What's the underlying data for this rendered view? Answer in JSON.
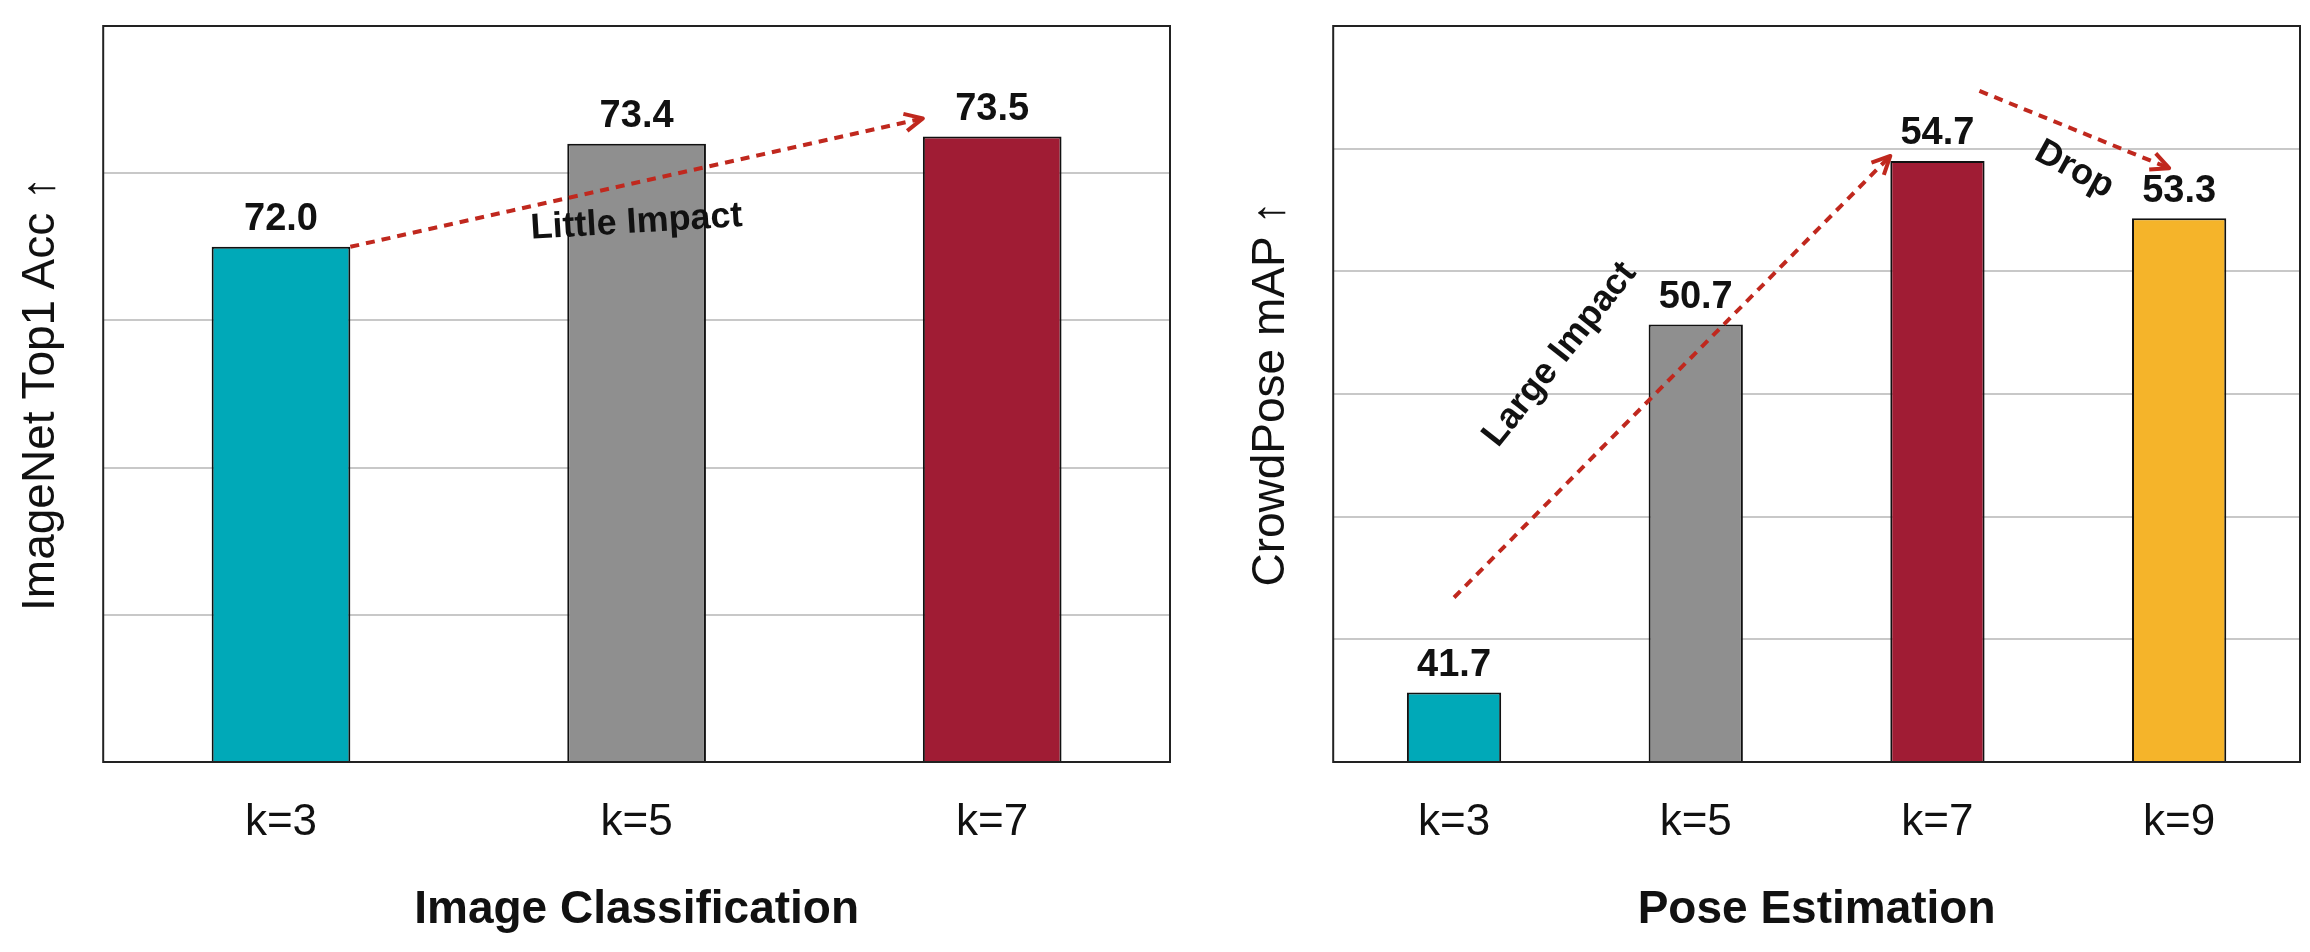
{
  "chart_data": [
    {
      "type": "bar",
      "xlabel": "Image Classification",
      "ylabel": "ImageNet Top1 Acc ↑",
      "categories": [
        "k=3",
        "k=5",
        "k=7"
      ],
      "values": [
        72.0,
        73.4,
        73.5
      ],
      "colors": [
        "#00a9b8",
        "#8f8f8f",
        "#a01c34"
      ],
      "ylim": [
        65,
        75
      ],
      "yticks": [
        {
          "value": 65,
          "label": null
        },
        {
          "value": 67,
          "label": null
        },
        {
          "value": 69,
          "label": null
        },
        {
          "value": 71,
          "label": null
        },
        {
          "value": 73,
          "label": null
        },
        {
          "value": 75,
          "label": null
        }
      ],
      "tick_labels": "x",
      "grid": "y",
      "legend": false,
      "value_labels": [
        "72.0",
        "73.4",
        "73.5"
      ],
      "annotations": [
        "Little Impact"
      ]
    },
    {
      "type": "bar",
      "xlabel": "Pose Estimation",
      "ylabel": "CrowdPose mAP ↑",
      "categories": [
        "k=3",
        "k=5",
        "k=7",
        "k=9"
      ],
      "values": [
        41.7,
        50.7,
        54.7,
        53.3
      ],
      "colors": [
        "#00a9b8",
        "#8f8f8f",
        "#a01c34",
        "#f5b42a"
      ],
      "ylim": [
        40,
        58
      ],
      "yticks": [
        {
          "value": 40,
          "label": null
        },
        {
          "value": 43,
          "label": null
        },
        {
          "value": 46,
          "label": null
        },
        {
          "value": 49,
          "label": null
        },
        {
          "value": 52,
          "label": null
        },
        {
          "value": 55,
          "label": null
        },
        {
          "value": 58,
          "label": null
        }
      ],
      "tick_labels": "x",
      "grid": "y",
      "legend": false,
      "value_labels": [
        "41.7",
        "50.7",
        "54.7",
        "53.3"
      ],
      "annotations": [
        "Large Impact",
        "Drop"
      ]
    }
  ]
}
